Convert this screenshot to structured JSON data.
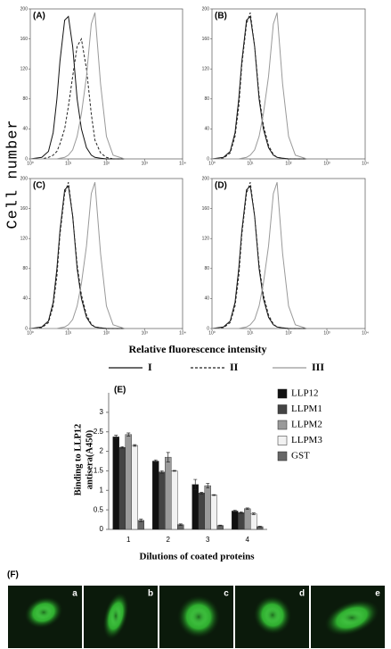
{
  "figure": {
    "ylabel": "Cell number",
    "xlabel": "Relative fluorescence intensity"
  },
  "chart_data": [
    {
      "type": "line",
      "title": "(A)",
      "xscale": "log",
      "xlim": [
        1,
        10000
      ],
      "xticks": [
        {
          "value": 1,
          "label": "10⁰"
        },
        {
          "value": 10,
          "label": "10¹"
        },
        {
          "value": 100,
          "label": "10²"
        },
        {
          "value": 1000,
          "label": "10³"
        },
        {
          "value": 10000,
          "label": "10⁴"
        }
      ],
      "ylim": [
        0,
        200
      ],
      "yticks": [
        0,
        40,
        80,
        120,
        160,
        200
      ],
      "x": [
        1,
        2,
        3,
        4,
        5,
        6,
        8,
        10,
        13,
        17,
        22,
        30,
        40,
        50,
        70,
        100,
        150,
        300
      ],
      "series": [
        {
          "name": "I",
          "color": "#111111",
          "dashed": false,
          "values": [
            0,
            2,
            10,
            35,
            80,
            130,
            185,
            190,
            150,
            80,
            40,
            15,
            5,
            2,
            1,
            0,
            0,
            0
          ]
        },
        {
          "name": "II",
          "color": "#222222",
          "dashed": true,
          "values": [
            0,
            0,
            2,
            5,
            10,
            20,
            40,
            70,
            110,
            150,
            160,
            120,
            60,
            25,
            8,
            2,
            0,
            0
          ]
        },
        {
          "name": "III",
          "color": "#999999",
          "dashed": false,
          "values": [
            0,
            0,
            0,
            0,
            0,
            1,
            2,
            5,
            12,
            30,
            60,
            110,
            180,
            195,
            100,
            30,
            5,
            0
          ]
        }
      ]
    },
    {
      "type": "line",
      "title": "(B)",
      "xscale": "log",
      "xlim": [
        1,
        10000
      ],
      "xticks": [
        {
          "value": 1,
          "label": "10⁰"
        },
        {
          "value": 10,
          "label": "10¹"
        },
        {
          "value": 100,
          "label": "10²"
        },
        {
          "value": 1000,
          "label": "10³"
        },
        {
          "value": 10000,
          "label": "10⁴"
        }
      ],
      "ylim": [
        0,
        200
      ],
      "yticks": [
        0,
        40,
        80,
        120,
        160,
        200
      ],
      "x": [
        1,
        2,
        3,
        4,
        5,
        6,
        8,
        10,
        13,
        17,
        22,
        30,
        40,
        50,
        70,
        100,
        150,
        300
      ],
      "series": [
        {
          "name": "I",
          "color": "#111111",
          "dashed": false,
          "values": [
            0,
            2,
            10,
            35,
            80,
            130,
            185,
            190,
            150,
            80,
            40,
            15,
            5,
            2,
            1,
            0,
            0,
            0
          ]
        },
        {
          "name": "II",
          "color": "#222222",
          "dashed": true,
          "values": [
            0,
            1,
            8,
            30,
            70,
            125,
            180,
            195,
            150,
            85,
            45,
            18,
            6,
            2,
            1,
            0,
            0,
            0
          ]
        },
        {
          "name": "III",
          "color": "#999999",
          "dashed": false,
          "values": [
            0,
            0,
            0,
            0,
            0,
            1,
            2,
            5,
            12,
            30,
            60,
            110,
            180,
            195,
            100,
            30,
            5,
            0
          ]
        }
      ]
    },
    {
      "type": "line",
      "title": "(C)",
      "xscale": "log",
      "xlim": [
        1,
        10000
      ],
      "xticks": [
        {
          "value": 1,
          "label": "10⁰"
        },
        {
          "value": 10,
          "label": "10¹"
        },
        {
          "value": 100,
          "label": "10²"
        },
        {
          "value": 1000,
          "label": "10³"
        },
        {
          "value": 10000,
          "label": "10⁴"
        }
      ],
      "ylim": [
        0,
        200
      ],
      "yticks": [
        0,
        40,
        80,
        120,
        160,
        200
      ],
      "x": [
        1,
        2,
        3,
        4,
        5,
        6,
        8,
        10,
        13,
        17,
        22,
        30,
        40,
        50,
        70,
        100,
        150,
        300
      ],
      "series": [
        {
          "name": "I",
          "color": "#111111",
          "dashed": false,
          "values": [
            0,
            2,
            10,
            35,
            80,
            130,
            185,
            190,
            150,
            80,
            40,
            15,
            5,
            2,
            1,
            0,
            0,
            0
          ]
        },
        {
          "name": "II",
          "color": "#222222",
          "dashed": true,
          "values": [
            0,
            1,
            8,
            30,
            70,
            125,
            180,
            195,
            150,
            85,
            45,
            18,
            6,
            2,
            1,
            0,
            0,
            0
          ]
        },
        {
          "name": "III",
          "color": "#999999",
          "dashed": false,
          "values": [
            0,
            0,
            0,
            0,
            0,
            1,
            2,
            5,
            12,
            30,
            60,
            110,
            180,
            195,
            100,
            30,
            5,
            0
          ]
        }
      ]
    },
    {
      "type": "line",
      "title": "(D)",
      "xscale": "log",
      "xlim": [
        1,
        10000
      ],
      "xticks": [
        {
          "value": 1,
          "label": "10⁰"
        },
        {
          "value": 10,
          "label": "10¹"
        },
        {
          "value": 100,
          "label": "10²"
        },
        {
          "value": 1000,
          "label": "10³"
        },
        {
          "value": 10000,
          "label": "10⁴"
        }
      ],
      "ylim": [
        0,
        200
      ],
      "yticks": [
        0,
        40,
        80,
        120,
        160,
        200
      ],
      "x": [
        1,
        2,
        3,
        4,
        5,
        6,
        8,
        10,
        13,
        17,
        22,
        30,
        40,
        50,
        70,
        100,
        150,
        300
      ],
      "series": [
        {
          "name": "I",
          "color": "#111111",
          "dashed": false,
          "values": [
            0,
            2,
            10,
            35,
            80,
            130,
            185,
            190,
            150,
            80,
            40,
            15,
            5,
            2,
            1,
            0,
            0,
            0
          ]
        },
        {
          "name": "II",
          "color": "#222222",
          "dashed": true,
          "values": [
            0,
            1,
            8,
            30,
            70,
            125,
            180,
            195,
            150,
            85,
            45,
            18,
            6,
            2,
            1,
            0,
            0,
            0
          ]
        },
        {
          "name": "III",
          "color": "#999999",
          "dashed": false,
          "values": [
            0,
            0,
            0,
            0,
            0,
            1,
            2,
            5,
            12,
            30,
            60,
            110,
            180,
            195,
            100,
            30,
            5,
            0
          ]
        }
      ]
    },
    {
      "type": "bar",
      "title": "(E)",
      "ylabel": [
        "Binding to LLP12",
        "antisera(A450)"
      ],
      "xlabel": "Dilutions of coated proteins",
      "categories": [
        "1",
        "2",
        "3",
        "4"
      ],
      "ylim": [
        0,
        3.5
      ],
      "yticks": [
        0,
        0.5,
        1,
        1.5,
        2,
        2.5,
        3
      ],
      "series": [
        {
          "name": "LLP12",
          "color": "#111111",
          "values": [
            2.37,
            1.75,
            1.15,
            0.47
          ],
          "errors": [
            0.04,
            0.03,
            0.13,
            0.02
          ]
        },
        {
          "name": "LLPM1",
          "color": "#444444",
          "values": [
            2.1,
            1.47,
            0.93,
            0.43
          ],
          "errors": [
            0.02,
            0.03,
            0.02,
            0.02
          ]
        },
        {
          "name": "LLPM2",
          "color": "#9a9a9a",
          "values": [
            2.43,
            1.85,
            1.12,
            0.53
          ],
          "errors": [
            0.04,
            0.12,
            0.06,
            0.02
          ]
        },
        {
          "name": "LLPM3",
          "color": "#f2f2f2",
          "values": [
            2.15,
            1.5,
            0.88,
            0.4
          ],
          "errors": [
            0.02,
            0.01,
            0.01,
            0.02
          ]
        },
        {
          "name": "GST",
          "color": "#666666",
          "values": [
            0.23,
            0.12,
            0.1,
            0.07
          ],
          "errors": [
            0.03,
            0.02,
            0.01,
            0.01
          ]
        }
      ]
    }
  ],
  "images": {
    "title": "(F)",
    "labels": [
      "a",
      "b",
      "c",
      "d",
      "e"
    ]
  }
}
